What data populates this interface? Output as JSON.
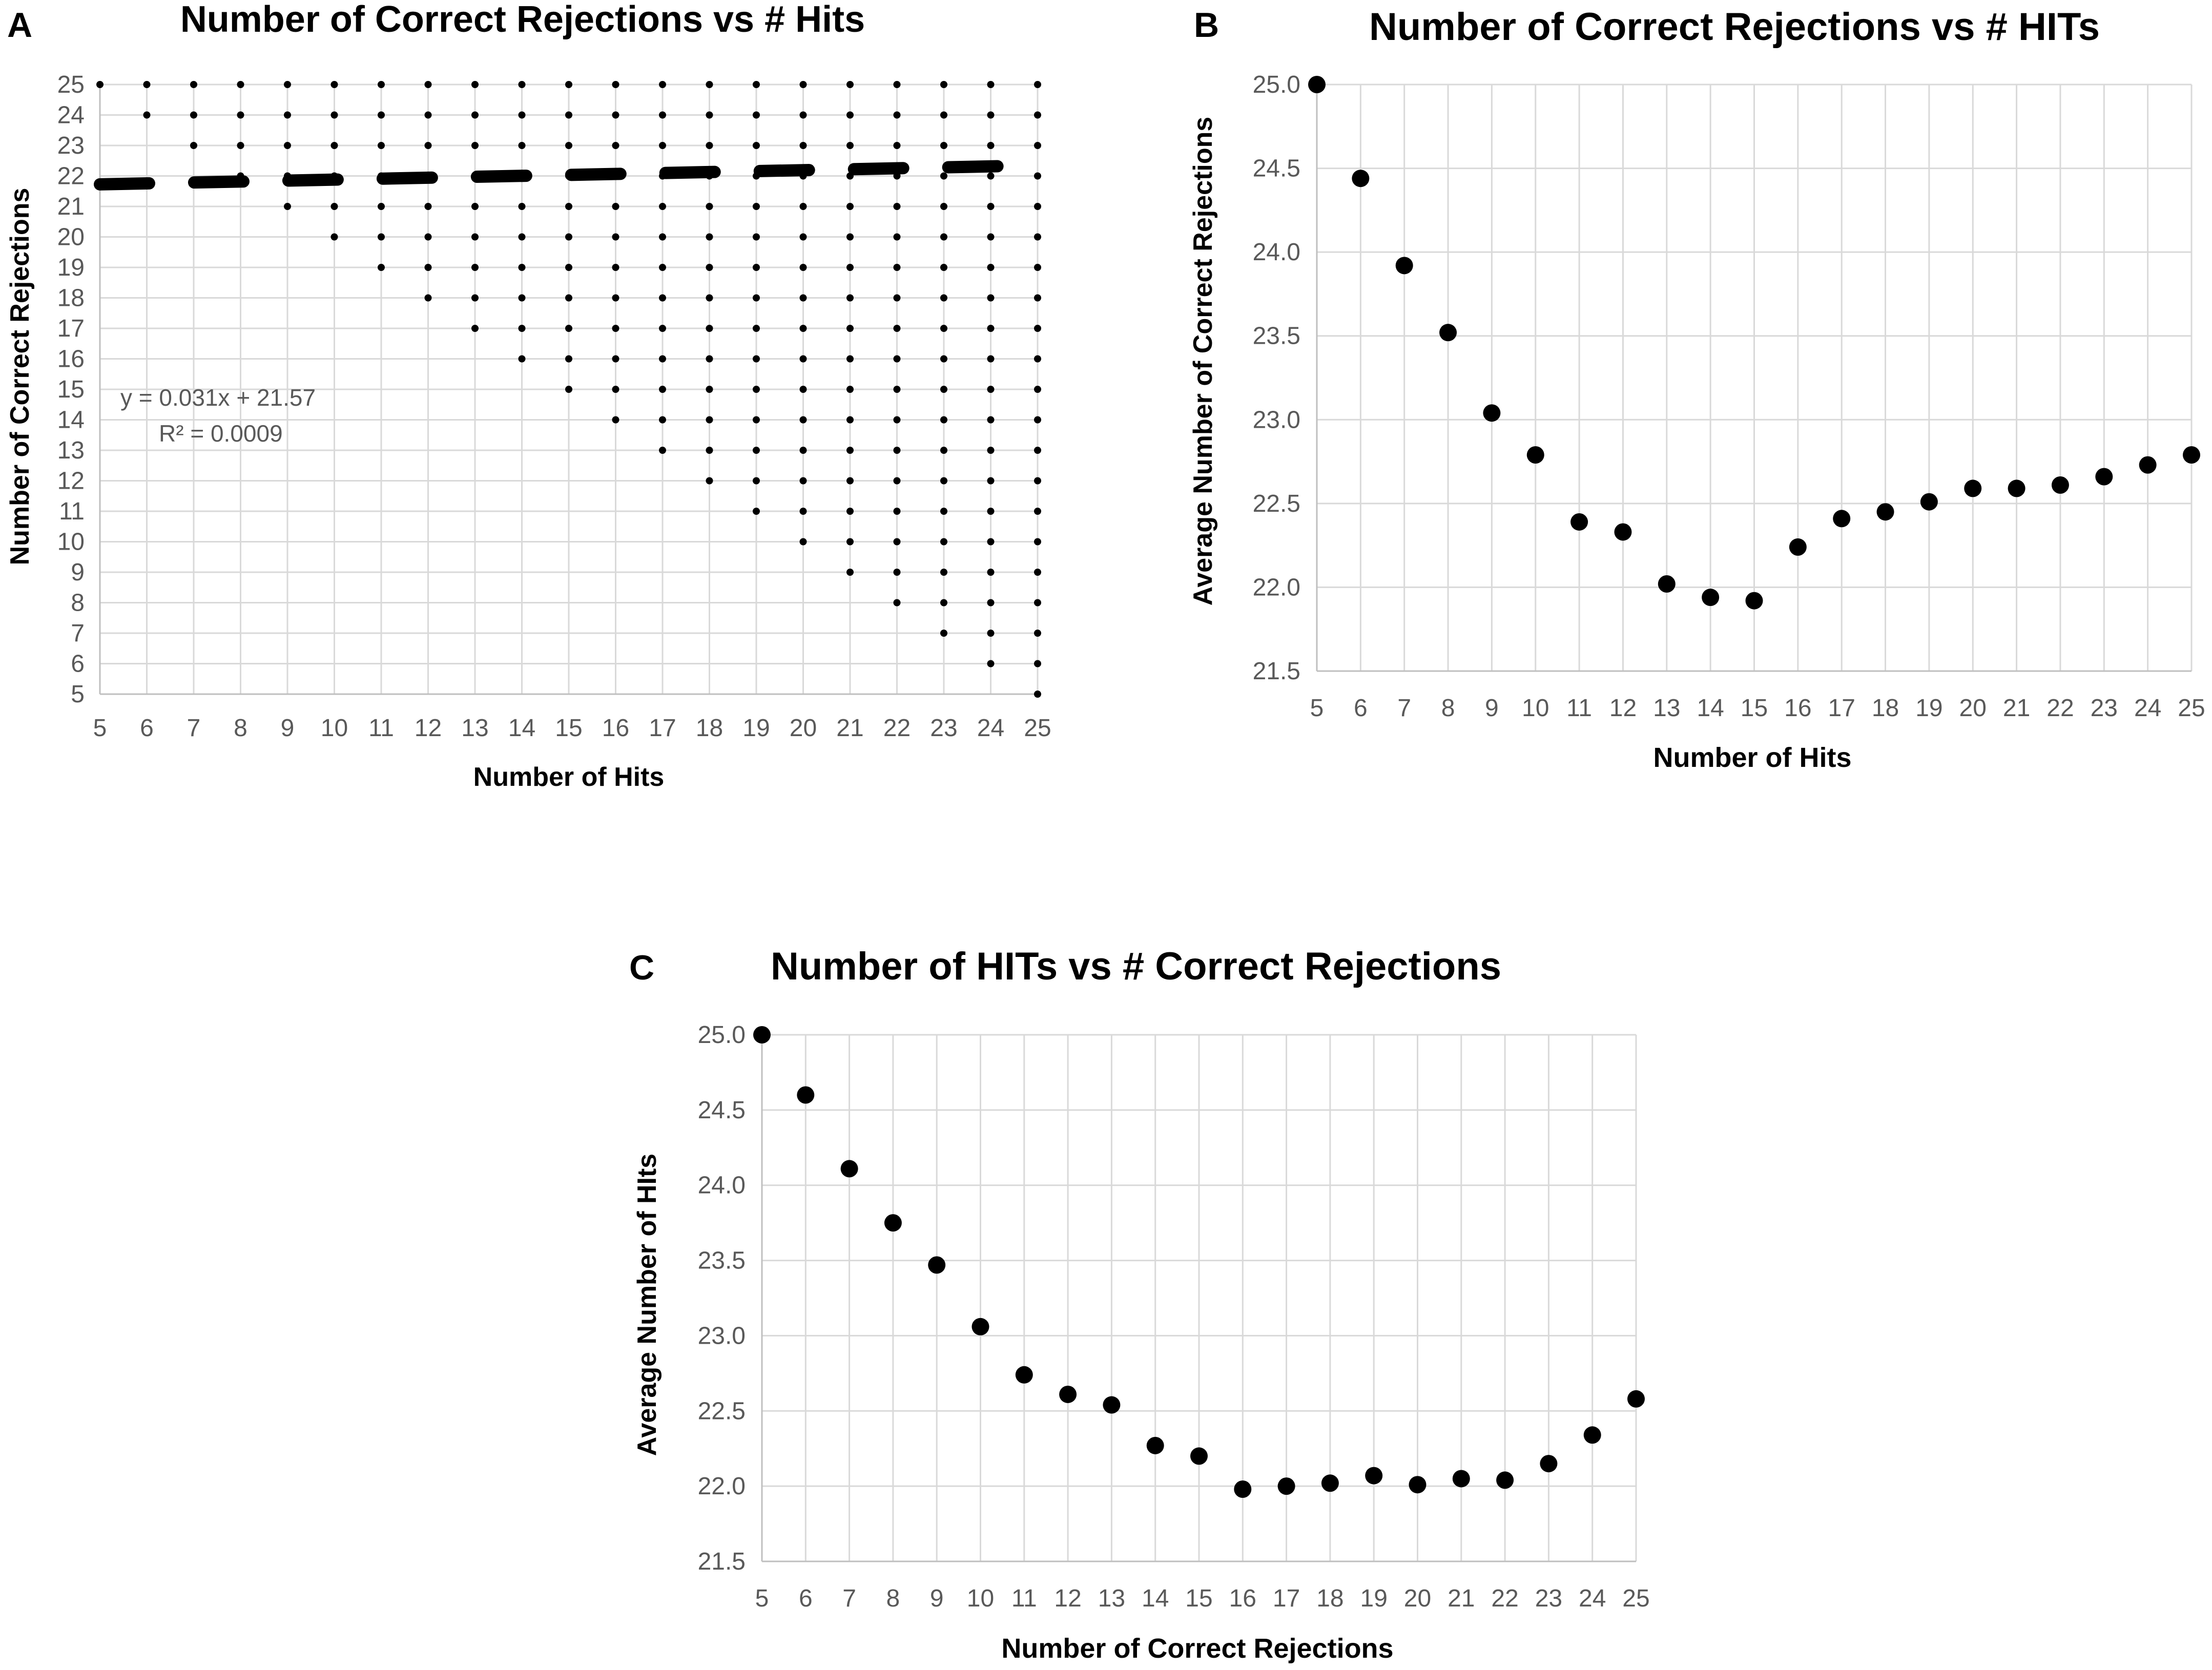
{
  "figure": {
    "panels": [
      {
        "letter": "A"
      },
      {
        "letter": "B"
      },
      {
        "letter": "C"
      }
    ]
  },
  "colors": {
    "grid": "#d9d9d9",
    "axis": "#bfbfbf",
    "marker": "#000000",
    "tick_text": "#595959",
    "title_text": "#000000",
    "annotation_text": "#595959"
  },
  "chart_data": [
    {
      "panel": "A",
      "type": "scatter",
      "title": "Number of Correct Rejections vs # Hits",
      "xlabel": "Number of Hits",
      "ylabel": "Number of Correct Rejections",
      "xlim": [
        5,
        25
      ],
      "ylim": [
        5,
        25
      ],
      "x_ticks": [
        5,
        6,
        7,
        8,
        9,
        10,
        11,
        12,
        13,
        14,
        15,
        16,
        17,
        18,
        19,
        20,
        21,
        22,
        23,
        24,
        25
      ],
      "y_ticks": [
        5,
        6,
        7,
        8,
        9,
        10,
        11,
        12,
        13,
        14,
        15,
        16,
        17,
        18,
        19,
        20,
        21,
        22,
        23,
        24,
        25
      ],
      "grid": true,
      "point_columns": [
        {
          "x": 5,
          "y_min": 25,
          "y_max": 25
        },
        {
          "x": 6,
          "y_min": 24,
          "y_max": 25
        },
        {
          "x": 7,
          "y_min": 23,
          "y_max": 25
        },
        {
          "x": 8,
          "y_min": 22,
          "y_max": 25
        },
        {
          "x": 9,
          "y_min": 21,
          "y_max": 25
        },
        {
          "x": 10,
          "y_min": 20,
          "y_max": 25
        },
        {
          "x": 11,
          "y_min": 19,
          "y_max": 25
        },
        {
          "x": 12,
          "y_min": 18,
          "y_max": 25
        },
        {
          "x": 13,
          "y_min": 17,
          "y_max": 25
        },
        {
          "x": 14,
          "y_min": 16,
          "y_max": 25
        },
        {
          "x": 15,
          "y_min": 15,
          "y_max": 25
        },
        {
          "x": 16,
          "y_min": 14,
          "y_max": 25
        },
        {
          "x": 17,
          "y_min": 13,
          "y_max": 25
        },
        {
          "x": 18,
          "y_min": 12,
          "y_max": 25
        },
        {
          "x": 19,
          "y_min": 11,
          "y_max": 25
        },
        {
          "x": 20,
          "y_min": 10,
          "y_max": 25
        },
        {
          "x": 21,
          "y_min": 9,
          "y_max": 25
        },
        {
          "x": 22,
          "y_min": 8,
          "y_max": 25
        },
        {
          "x": 23,
          "y_min": 7,
          "y_max": 25
        },
        {
          "x": 24,
          "y_min": 6,
          "y_max": 25
        },
        {
          "x": 25,
          "y_min": 5,
          "y_max": 25
        }
      ],
      "trendline": {
        "slope": 0.031,
        "intercept": 21.57,
        "style": "dashed"
      },
      "equation_label": "y = 0.031x + 21.57",
      "r2_label": "R² = 0.0009"
    },
    {
      "panel": "B",
      "type": "scatter",
      "title": "Number of Correct Rejections vs # HITs",
      "xlabel": "Number of Hits",
      "ylabel": "Average Number of Correct Rejections",
      "xlim": [
        5,
        25
      ],
      "ylim": [
        21.5,
        25.0
      ],
      "x_ticks": [
        5,
        6,
        7,
        8,
        9,
        10,
        11,
        12,
        13,
        14,
        15,
        16,
        17,
        18,
        19,
        20,
        21,
        22,
        23,
        24,
        25
      ],
      "y_ticks": [
        "21.5",
        "22.0",
        "22.5",
        "23.0",
        "23.5",
        "24.0",
        "24.5",
        "25.0"
      ],
      "grid": true,
      "x": [
        5,
        6,
        7,
        8,
        9,
        10,
        11,
        12,
        13,
        14,
        15,
        16,
        17,
        18,
        19,
        20,
        21,
        22,
        23,
        24,
        25
      ],
      "y": [
        25.0,
        24.44,
        23.92,
        23.52,
        23.04,
        22.79,
        22.39,
        22.33,
        22.02,
        21.94,
        21.92,
        22.24,
        22.41,
        22.45,
        22.51,
        22.59,
        22.59,
        22.61,
        22.66,
        22.73,
        22.79
      ]
    },
    {
      "panel": "C",
      "type": "scatter",
      "title": "Number of HITs vs # Correct Rejections",
      "xlabel": "Number of Correct Rejections",
      "ylabel": "Average Number of HIts",
      "xlim": [
        5,
        25
      ],
      "ylim": [
        21.5,
        25.0
      ],
      "x_ticks": [
        5,
        6,
        7,
        8,
        9,
        10,
        11,
        12,
        13,
        14,
        15,
        16,
        17,
        18,
        19,
        20,
        21,
        22,
        23,
        24,
        25
      ],
      "y_ticks": [
        "21.5",
        "22.0",
        "22.5",
        "23.0",
        "23.5",
        "24.0",
        "24.5",
        "25.0"
      ],
      "grid": true,
      "x": [
        5,
        6,
        7,
        8,
        9,
        10,
        11,
        12,
        13,
        14,
        15,
        16,
        17,
        18,
        19,
        20,
        21,
        22,
        23,
        24,
        25
      ],
      "y": [
        25.0,
        24.6,
        24.11,
        23.75,
        23.47,
        23.06,
        22.74,
        22.61,
        22.54,
        22.27,
        22.2,
        21.98,
        22.0,
        22.02,
        22.07,
        22.01,
        22.05,
        22.04,
        22.15,
        22.34,
        22.58
      ]
    }
  ]
}
